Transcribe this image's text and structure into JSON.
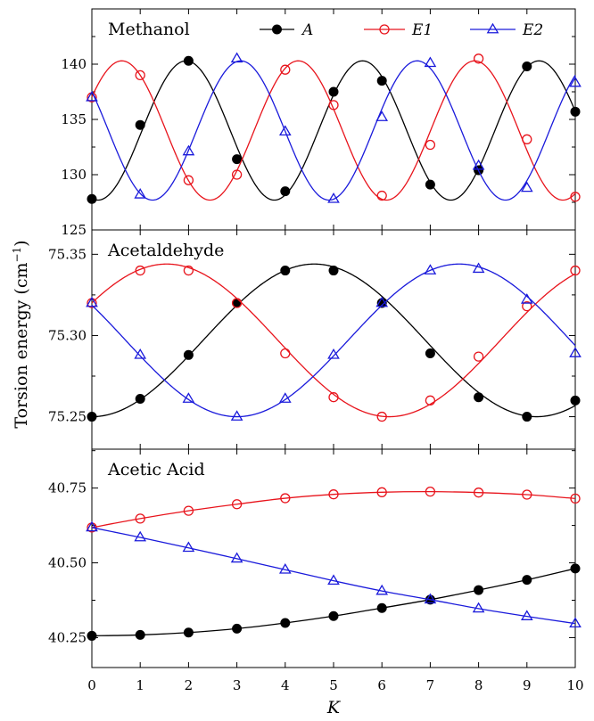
{
  "chart_data": {
    "type": "line",
    "ylabel": "Torsion energy (cm",
    "ylabel_sup": "−1",
    "ylabel_close": ")",
    "xlabel": "K",
    "xlim": [
      0,
      10
    ],
    "x_ticks": [
      0,
      1,
      2,
      3,
      4,
      5,
      6,
      7,
      8,
      9,
      10
    ],
    "legend": {
      "placement": "top",
      "entries": [
        {
          "label": "A",
          "color": "#000000",
          "marker": "filled-circle"
        },
        {
          "label": "E1",
          "color": "#e8141c",
          "marker": "open-circle"
        },
        {
          "label": "E2",
          "color": "#1a1adb",
          "marker": "open-triangle"
        }
      ]
    },
    "panels": [
      {
        "title": "Methanol",
        "ylim": [
          125,
          145
        ],
        "y_ticks": [
          125,
          130,
          135,
          140
        ],
        "y_tick_labels": [
          "125",
          "130",
          "135",
          "140"
        ],
        "curves": {
          "A": {
            "mean": 134.0,
            "amp": 6.3,
            "period": 3.65,
            "peak": 1.95
          },
          "E1": {
            "mean": 134.0,
            "amp": 6.3,
            "period": 3.65,
            "peak": 0.62
          },
          "E2": {
            "mean": 134.0,
            "amp": 6.3,
            "period": 3.65,
            "peak": 3.08
          }
        },
        "series": [
          {
            "name": "A",
            "x": [
              0,
              1,
              2,
              3,
              4,
              5,
              6,
              7,
              8,
              9,
              10
            ],
            "values": [
              127.8,
              134.5,
              140.3,
              131.4,
              128.5,
              137.5,
              138.5,
              129.1,
              130.4,
              139.8,
              135.7
            ]
          },
          {
            "name": "E1",
            "x": [
              0,
              1,
              2,
              3,
              4,
              5,
              6,
              7,
              8,
              9,
              10
            ],
            "values": [
              137.0,
              139.0,
              129.5,
              130.0,
              139.5,
              136.3,
              128.1,
              132.7,
              140.5,
              133.2,
              128.0
            ]
          },
          {
            "name": "E2",
            "x": [
              0,
              1,
              2,
              3,
              4,
              5,
              6,
              7,
              8,
              9,
              10
            ],
            "values": [
              137.0,
              128.2,
              132.1,
              140.5,
              133.9,
              127.8,
              135.2,
              140.1,
              130.8,
              128.8,
              138.3
            ]
          }
        ]
      },
      {
        "title": "Acetaldehyde",
        "ylim": [
          75.23,
          75.365
        ],
        "y_ticks": [
          75.25,
          75.3,
          75.35
        ],
        "y_tick_labels": [
          "75.25",
          "75.30",
          "75.35"
        ],
        "curves": {
          "A": {
            "mean": 75.297,
            "amp": 0.047,
            "period": 9.2,
            "peak": 4.6
          },
          "E1": {
            "mean": 75.297,
            "amp": 0.047,
            "period": 9.2,
            "peak": 1.55
          },
          "E2": {
            "mean": 75.297,
            "amp": 0.047,
            "period": 9.2,
            "peak": 7.6
          }
        },
        "series": [
          {
            "name": "A",
            "x": [
              0,
              1,
              2,
              3,
              4,
              5,
              6,
              7,
              8,
              9,
              10
            ],
            "values": [
              75.25,
              75.261,
              75.288,
              75.32,
              75.34,
              75.34,
              75.32,
              75.289,
              75.262,
              75.25,
              75.26
            ]
          },
          {
            "name": "E1",
            "x": [
              0,
              1,
              2,
              3,
              4,
              5,
              6,
              7,
              8,
              9,
              10
            ],
            "values": [
              75.32,
              75.34,
              75.34,
              75.32,
              75.289,
              75.262,
              75.25,
              75.26,
              75.287,
              75.318,
              75.34
            ]
          },
          {
            "name": "E2",
            "x": [
              0,
              1,
              2,
              3,
              4,
              5,
              6,
              7,
              8,
              9,
              10
            ],
            "values": [
              75.32,
              75.288,
              75.261,
              75.25,
              75.261,
              75.288,
              75.32,
              75.34,
              75.341,
              75.322,
              75.289
            ]
          }
        ]
      },
      {
        "title": "Acetic Acid",
        "ylim": [
          40.15,
          40.88
        ],
        "y_ticks": [
          40.25,
          40.5,
          40.75
        ],
        "y_tick_labels": [
          "40.25",
          "40.50",
          "40.75"
        ],
        "series": [
          {
            "name": "A",
            "x": [
              0,
              1,
              2,
              3,
              4,
              5,
              6,
              7,
              8,
              9,
              10
            ],
            "values": [
              40.256,
              40.259,
              40.267,
              40.28,
              40.299,
              40.322,
              40.349,
              40.377,
              40.409,
              40.443,
              40.481
            ]
          },
          {
            "name": "E1",
            "x": [
              0,
              1,
              2,
              3,
              4,
              5,
              6,
              7,
              8,
              9,
              10
            ],
            "values": [
              40.618,
              40.648,
              40.674,
              40.696,
              40.716,
              40.729,
              40.736,
              40.738,
              40.735,
              40.728,
              40.715
            ]
          },
          {
            "name": "E2",
            "x": [
              0,
              1,
              2,
              3,
              4,
              5,
              6,
              7,
              8,
              9,
              10
            ],
            "values": [
              40.618,
              40.585,
              40.55,
              40.514,
              40.477,
              40.44,
              40.406,
              40.377,
              40.347,
              40.321,
              40.297
            ]
          }
        ]
      }
    ]
  }
}
